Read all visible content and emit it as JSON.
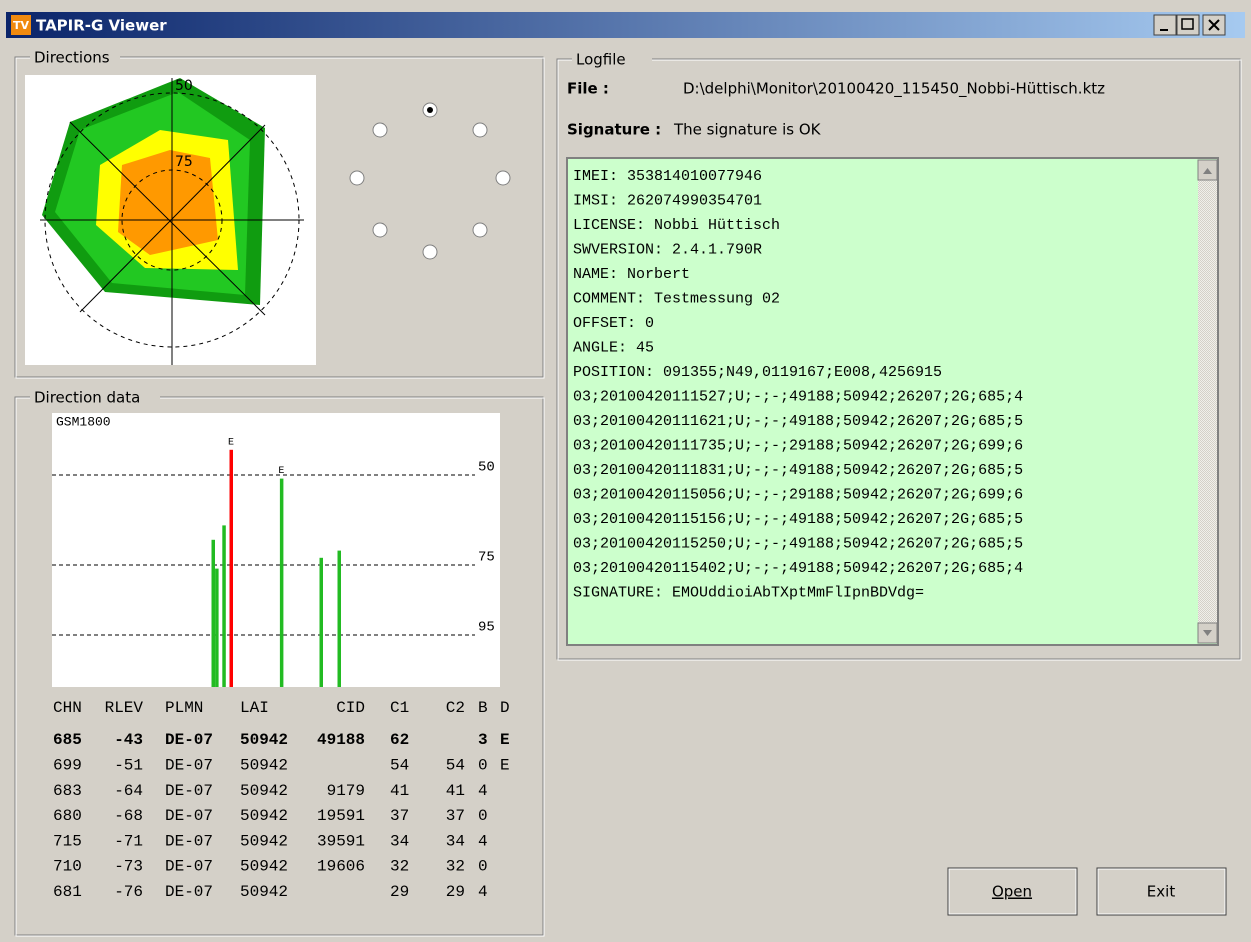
{
  "window": {
    "icon": "TV",
    "title": "TAPIR-G Viewer"
  },
  "directions": {
    "label": "Directions",
    "radar_labels": [
      "50",
      "75"
    ]
  },
  "direction_data": {
    "label": "Direction data",
    "chart": {
      "title": "GSM1800",
      "levels": [
        "50",
        "75",
        "95"
      ]
    },
    "table": {
      "header": [
        "CHN",
        "RLEV",
        "PLMN",
        "LAI",
        "CID",
        "C1",
        "C2",
        "B",
        "D"
      ],
      "rows": [
        [
          "685",
          "-43",
          "DE-07",
          "50942",
          "49188",
          "62",
          null,
          "3",
          "E"
        ],
        [
          "699",
          "-51",
          "DE-07",
          "50942",
          null,
          "54",
          "54",
          "0",
          "E"
        ],
        [
          "683",
          "-64",
          "DE-07",
          "50942",
          "9179",
          "41",
          "41",
          "4",
          null
        ],
        [
          "680",
          "-68",
          "DE-07",
          "50942",
          "19591",
          "37",
          "37",
          "0",
          null
        ],
        [
          "715",
          "-71",
          "DE-07",
          "50942",
          "39591",
          "34",
          "34",
          "4",
          null
        ],
        [
          "710",
          "-73",
          "DE-07",
          "50942",
          "19606",
          "32",
          "32",
          "0",
          null
        ],
        [
          "681",
          "-76",
          "DE-07",
          "50942",
          null,
          "29",
          "29",
          "4",
          null
        ]
      ]
    }
  },
  "logfile": {
    "label": "Logfile",
    "file_label": "File :",
    "file": "D:\\delphi\\Monitor\\20100420_115450_Nobbi-Hüttisch.ktz",
    "signature_label": "Signature :",
    "signature": "The signature is OK",
    "lines": [
      "IMEI: 353814010077946",
      "IMSI: 262074990354701",
      "LICENSE: Nobbi Hüttisch",
      "SWVERSION: 2.4.1.790R",
      "NAME: Norbert",
      "COMMENT: Testmessung 02",
      "OFFSET: 0",
      "ANGLE: 45",
      "POSITION: 091355;N49,0119167;E008,4256915",
      "03;20100420111527;U;-;-;49188;50942;26207;2G;685;4",
      "03;20100420111621;U;-;-;49188;50942;26207;2G;685;5",
      "03;20100420111735;U;-;-;29188;50942;26207;2G;699;6",
      "03;20100420111831;U;-;-;49188;50942;26207;2G;685;5",
      "03;20100420115056;U;-;-;29188;50942;26207;2G;699;6",
      "03;20100420115156;U;-;-;49188;50942;26207;2G;685;5",
      "03;20100420115250;U;-;-;49188;50942;26207;2G;685;5",
      "03;20100420115402;U;-;-;49188;50942;26207;2G;685;4",
      "SIGNATURE: EMOUddioiAbTXptMmFlIpnBDVdg="
    ]
  },
  "buttons": {
    "open": "Open",
    "exit": "Exit"
  }
}
